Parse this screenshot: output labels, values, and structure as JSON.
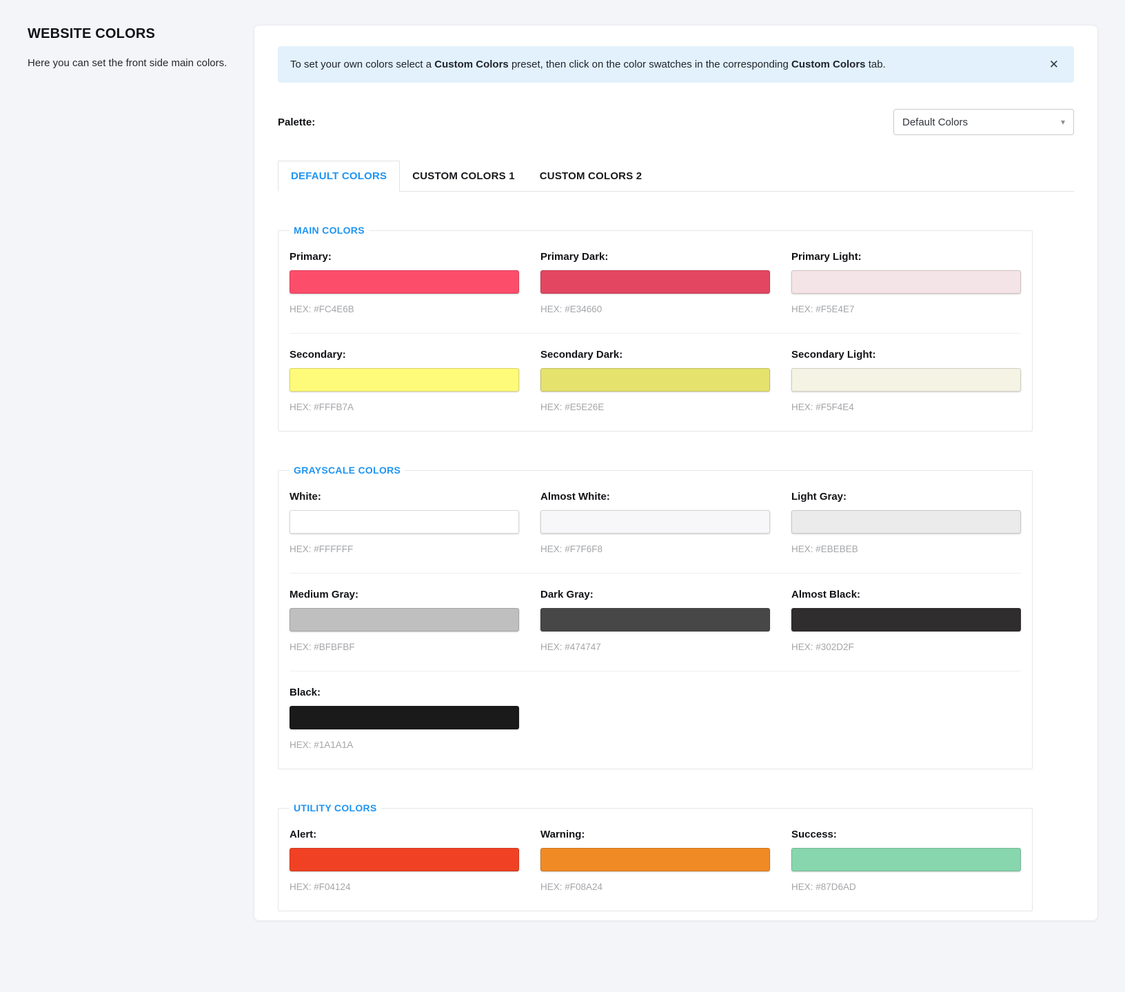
{
  "page": {
    "title": "WEBSITE COLORS",
    "subtitle": "Here you can set the front side main colors."
  },
  "banner": {
    "text_parts": [
      "To set your own colors select a ",
      "Custom Colors",
      " preset, then click on the color swatches in the corresponding ",
      "Custom Colors",
      " tab."
    ],
    "close_icon": "✕"
  },
  "palette": {
    "label": "Palette:",
    "selected": "Default Colors",
    "chevron_icon": "▾"
  },
  "tabs": [
    {
      "label": "DEFAULT COLORS",
      "active": true
    },
    {
      "label": "CUSTOM COLORS 1",
      "active": false
    },
    {
      "label": "CUSTOM COLORS 2",
      "active": false
    }
  ],
  "theme_colors": {
    "accent_blue": "#2095F2",
    "banner_background": "#E2F1FB"
  },
  "sections": [
    {
      "title": "MAIN COLORS",
      "rows": [
        [
          {
            "label": "Primary:",
            "hex": "HEX: #FC4E6B",
            "color": "#FC4E6B"
          },
          {
            "label": "Primary Dark:",
            "hex": "HEX: #E34660",
            "color": "#E34660"
          },
          {
            "label": "Primary Light:",
            "hex": "HEX: #F5E4E7",
            "color": "#F5E4E7"
          }
        ],
        [
          {
            "label": "Secondary:",
            "hex": "HEX: #FFFB7A",
            "color": "#FFFB7A"
          },
          {
            "label": "Secondary Dark:",
            "hex": "HEX: #E5E26E",
            "color": "#E5E26E"
          },
          {
            "label": "Secondary Light:",
            "hex": "HEX: #F5F4E4",
            "color": "#F5F4E4"
          }
        ]
      ]
    },
    {
      "title": "GRAYSCALE COLORS",
      "rows": [
        [
          {
            "label": "White:",
            "hex": "HEX: #FFFFFF",
            "color": "#FFFFFF"
          },
          {
            "label": "Almost White:",
            "hex": "HEX: #F7F6F8",
            "color": "#F7F6F8"
          },
          {
            "label": "Light Gray:",
            "hex": "HEX: #EBEBEB",
            "color": "#EBEBEB"
          }
        ],
        [
          {
            "label": "Medium Gray:",
            "hex": "HEX: #BFBFBF",
            "color": "#BFBFBF"
          },
          {
            "label": "Dark Gray:",
            "hex": "HEX: #474747",
            "color": "#474747"
          },
          {
            "label": "Almost Black:",
            "hex": "HEX: #302D2F",
            "color": "#302D2F"
          }
        ],
        [
          {
            "label": "Black:",
            "hex": "HEX: #1A1A1A",
            "color": "#1A1A1A"
          }
        ]
      ]
    },
    {
      "title": "UTILITY COLORS",
      "rows": [
        [
          {
            "label": "Alert:",
            "hex": "HEX: #F04124",
            "color": "#F04124"
          },
          {
            "label": "Warning:",
            "hex": "HEX: #F08A24",
            "color": "#F08A24"
          },
          {
            "label": "Success:",
            "hex": "HEX: #87D6AD",
            "color": "#87D6AD"
          }
        ]
      ]
    }
  ]
}
